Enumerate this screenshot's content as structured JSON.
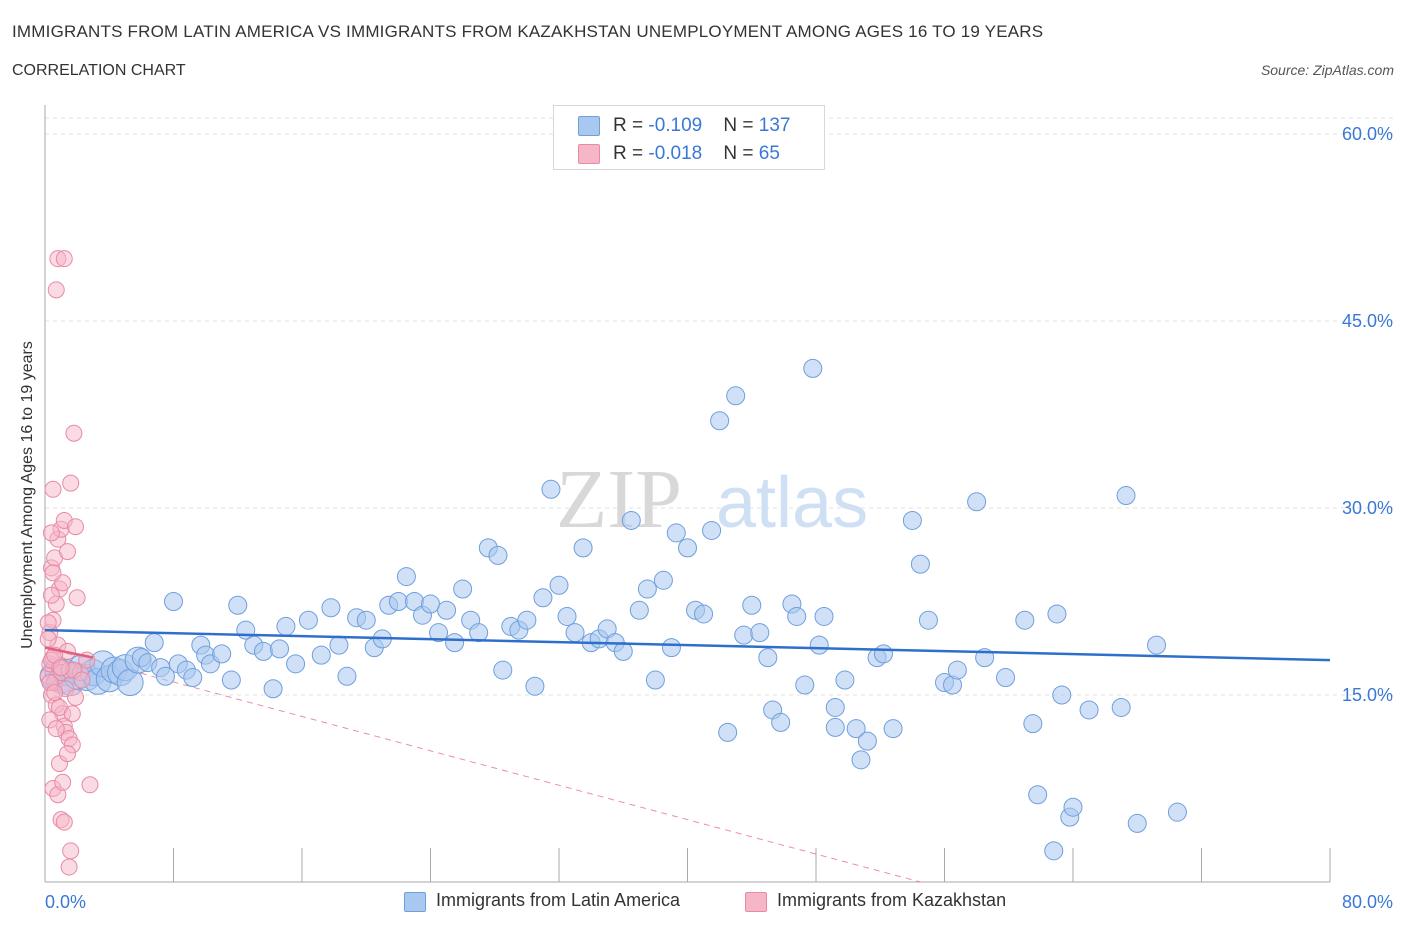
{
  "header": {
    "title": "IMMIGRANTS FROM LATIN AMERICA VS IMMIGRANTS FROM KAZAKHSTAN UNEMPLOYMENT AMONG AGES 16 TO 19 YEARS",
    "subtitle": "CORRELATION CHART",
    "source": "Source: ZipAtlas.com"
  },
  "legend": {
    "rows": [
      {
        "r_label": "R = ",
        "r_value": "-0.109",
        "n_label": "N = ",
        "n_value": "137",
        "color": "#a9c8f0"
      },
      {
        "r_label": "R = ",
        "r_value": "-0.018",
        "n_label": "N = ",
        "n_value": "65",
        "color": "#f5b6c8"
      }
    ]
  },
  "bottom_legend": {
    "items": [
      {
        "label": "Immigrants from Latin America",
        "color": "#a9c8f0"
      },
      {
        "label": "Immigrants from Kazakhstan",
        "color": "#f5b6c8"
      }
    ]
  },
  "watermark": {
    "zip": "ZIP",
    "atlas": "atlas"
  },
  "colors": {
    "blue_fill": "#a9c8f0",
    "blue_stroke": "#6f9fdc",
    "blue_line": "#2f6fcc",
    "pink_fill": "#f5b6c8",
    "pink_stroke": "#e88aa6",
    "pink_line": "#e0607f",
    "axis_text": "#3a78d6",
    "grid": "#e2e2e2"
  },
  "chart_data": {
    "type": "scatter",
    "title": "IMMIGRANTS FROM LATIN AMERICA VS IMMIGRANTS FROM KAZAKHSTAN UNEMPLOYMENT AMONG AGES 16 TO 19 YEARS",
    "xlabel": "",
    "ylabel": "Unemployment Among Ages 16 to 19 years",
    "xlim": [
      0,
      80
    ],
    "ylim": [
      0,
      60
    ],
    "x_tick_labels": [
      "0.0%",
      "80.0%"
    ],
    "y_ticks": [
      15,
      30,
      45,
      60
    ],
    "y_tick_labels": [
      "15.0%",
      "30.0%",
      "45.0%",
      "60.0%"
    ],
    "grid": true,
    "legend_position": "top-center",
    "series": [
      {
        "name": "Immigrants from Latin America",
        "r": -0.109,
        "n": 137,
        "trend": {
          "x": [
            0,
            80
          ],
          "y": [
            20.2,
            17.8
          ]
        },
        "points": [
          [
            0.5,
            16.5
          ],
          [
            0.8,
            17.0
          ],
          [
            1.0,
            16.2
          ],
          [
            1.3,
            16.8
          ],
          [
            1.6,
            16.0
          ],
          [
            2.0,
            16.5
          ],
          [
            2.3,
            17.2
          ],
          [
            2.6,
            16.4
          ],
          [
            3.0,
            16.8
          ],
          [
            3.3,
            16.1
          ],
          [
            3.6,
            17.5
          ],
          [
            4.0,
            16.3
          ],
          [
            4.3,
            17.0
          ],
          [
            4.7,
            16.8
          ],
          [
            5.0,
            17.2
          ],
          [
            5.3,
            16.0
          ],
          [
            5.8,
            17.8
          ],
          [
            6.0,
            18.0
          ],
          [
            6.4,
            17.6
          ],
          [
            6.8,
            19.2
          ],
          [
            7.2,
            17.2
          ],
          [
            7.5,
            16.5
          ],
          [
            8.0,
            22.5
          ],
          [
            8.3,
            17.5
          ],
          [
            8.8,
            17.0
          ],
          [
            9.2,
            16.4
          ],
          [
            9.7,
            19.0
          ],
          [
            10.0,
            18.2
          ],
          [
            10.3,
            17.5
          ],
          [
            11.0,
            18.3
          ],
          [
            11.6,
            16.2
          ],
          [
            12.0,
            22.2
          ],
          [
            12.5,
            20.2
          ],
          [
            13.0,
            19.0
          ],
          [
            13.6,
            18.5
          ],
          [
            14.2,
            15.5
          ],
          [
            14.6,
            18.7
          ],
          [
            15.0,
            20.5
          ],
          [
            15.6,
            17.5
          ],
          [
            16.4,
            21.0
          ],
          [
            17.2,
            18.2
          ],
          [
            17.8,
            22.0
          ],
          [
            18.3,
            19.0
          ],
          [
            18.8,
            16.5
          ],
          [
            19.4,
            21.2
          ],
          [
            20.0,
            21.0
          ],
          [
            20.5,
            18.8
          ],
          [
            21.0,
            19.5
          ],
          [
            21.4,
            22.2
          ],
          [
            22.0,
            22.5
          ],
          [
            22.5,
            24.5
          ],
          [
            23.0,
            22.5
          ],
          [
            23.5,
            21.4
          ],
          [
            24.0,
            22.3
          ],
          [
            24.5,
            20.0
          ],
          [
            25.0,
            21.8
          ],
          [
            25.5,
            19.2
          ],
          [
            26.0,
            23.5
          ],
          [
            26.5,
            21.0
          ],
          [
            27.0,
            20.0
          ],
          [
            27.6,
            26.8
          ],
          [
            28.2,
            26.2
          ],
          [
            28.5,
            17.0
          ],
          [
            29.0,
            20.5
          ],
          [
            29.5,
            20.2
          ],
          [
            30.0,
            21.0
          ],
          [
            30.5,
            15.7
          ],
          [
            31.0,
            22.8
          ],
          [
            31.5,
            31.5
          ],
          [
            32.0,
            23.8
          ],
          [
            32.5,
            21.3
          ],
          [
            33.0,
            20.0
          ],
          [
            33.5,
            26.8
          ],
          [
            34.0,
            19.2
          ],
          [
            34.5,
            19.5
          ],
          [
            35.0,
            20.3
          ],
          [
            35.5,
            19.2
          ],
          [
            36.0,
            18.5
          ],
          [
            36.5,
            29.0
          ],
          [
            37.0,
            21.8
          ],
          [
            37.5,
            23.5
          ],
          [
            38.0,
            16.2
          ],
          [
            38.5,
            24.2
          ],
          [
            39.0,
            18.8
          ],
          [
            39.3,
            28.0
          ],
          [
            40.0,
            26.8
          ],
          [
            40.5,
            21.8
          ],
          [
            41.0,
            21.5
          ],
          [
            41.5,
            28.2
          ],
          [
            42.0,
            37.0
          ],
          [
            42.5,
            12.0
          ],
          [
            43.0,
            39.0
          ],
          [
            43.5,
            19.8
          ],
          [
            44.0,
            22.2
          ],
          [
            44.5,
            20.0
          ],
          [
            45.0,
            18.0
          ],
          [
            45.3,
            13.8
          ],
          [
            45.8,
            12.8
          ],
          [
            46.5,
            22.3
          ],
          [
            46.8,
            21.3
          ],
          [
            47.3,
            15.8
          ],
          [
            47.8,
            41.2
          ],
          [
            48.2,
            19.0
          ],
          [
            48.5,
            21.3
          ],
          [
            49.2,
            14.0
          ],
          [
            49.2,
            12.4
          ],
          [
            49.8,
            16.2
          ],
          [
            50.5,
            12.3
          ],
          [
            50.8,
            9.8
          ],
          [
            51.2,
            11.3
          ],
          [
            51.8,
            18.0
          ],
          [
            52.2,
            18.3
          ],
          [
            52.8,
            12.3
          ],
          [
            54.0,
            29.0
          ],
          [
            54.5,
            25.5
          ],
          [
            55.0,
            21.0
          ],
          [
            56.0,
            16.0
          ],
          [
            56.5,
            15.8
          ],
          [
            56.8,
            17.0
          ],
          [
            58.0,
            30.5
          ],
          [
            58.5,
            18.0
          ],
          [
            59.8,
            16.4
          ],
          [
            61.0,
            21.0
          ],
          [
            61.5,
            12.7
          ],
          [
            61.8,
            7.0
          ],
          [
            62.8,
            2.5
          ],
          [
            63.0,
            21.5
          ],
          [
            63.3,
            15.0
          ],
          [
            63.8,
            5.2
          ],
          [
            64.0,
            6.0
          ],
          [
            65.0,
            13.8
          ],
          [
            67.0,
            14.0
          ],
          [
            67.3,
            31.0
          ],
          [
            68.0,
            4.7
          ],
          [
            69.2,
            19.0
          ],
          [
            70.5,
            5.6
          ]
        ]
      },
      {
        "name": "Immigrants from Kazakhstan",
        "r": -0.018,
        "n": 65,
        "trend": {
          "x": [
            0,
            3
          ],
          "y": [
            18.8,
            18.0
          ]
        },
        "trend_extended": {
          "x": [
            0,
            54.5
          ],
          "y": [
            18.8,
            0
          ]
        },
        "points": [
          [
            0.2,
            16.5
          ],
          [
            0.3,
            17.5
          ],
          [
            0.4,
            15.0
          ],
          [
            0.5,
            18.0
          ],
          [
            0.6,
            16.0
          ],
          [
            0.7,
            14.2
          ],
          [
            0.8,
            19.0
          ],
          [
            0.9,
            17.2
          ],
          [
            1.0,
            16.8
          ],
          [
            1.1,
            13.5
          ],
          [
            1.2,
            12.5
          ],
          [
            1.3,
            15.5
          ],
          [
            1.4,
            18.5
          ],
          [
            1.5,
            17.0
          ],
          [
            0.3,
            20.0
          ],
          [
            0.5,
            21.0
          ],
          [
            0.7,
            22.3
          ],
          [
            0.9,
            23.5
          ],
          [
            1.1,
            24.0
          ],
          [
            0.4,
            25.2
          ],
          [
            0.6,
            26.0
          ],
          [
            0.8,
            27.5
          ],
          [
            1.0,
            28.3
          ],
          [
            1.2,
            29.0
          ],
          [
            0.5,
            31.5
          ],
          [
            1.6,
            32.0
          ],
          [
            1.8,
            36.0
          ],
          [
            0.7,
            47.5
          ],
          [
            0.8,
            50.0
          ],
          [
            1.2,
            50.0
          ],
          [
            1.9,
            28.5
          ],
          [
            0.3,
            16.0
          ],
          [
            0.4,
            17.8
          ],
          [
            0.6,
            15.2
          ],
          [
            0.9,
            14.0
          ],
          [
            1.3,
            12.0
          ],
          [
            1.5,
            11.5
          ],
          [
            1.7,
            11.0
          ],
          [
            0.5,
            7.5
          ],
          [
            0.8,
            7.0
          ],
          [
            1.0,
            5.0
          ],
          [
            1.2,
            4.8
          ],
          [
            1.6,
            2.5
          ],
          [
            1.5,
            1.2
          ],
          [
            2.0,
            22.8
          ],
          [
            2.2,
            16.8
          ],
          [
            0.2,
            19.5
          ],
          [
            0.4,
            23.0
          ],
          [
            1.4,
            26.5
          ],
          [
            0.6,
            18.2
          ],
          [
            1.8,
            17.0
          ],
          [
            2.3,
            16.2
          ],
          [
            2.6,
            17.8
          ],
          [
            0.3,
            13.0
          ],
          [
            0.7,
            12.3
          ],
          [
            1.1,
            8.0
          ],
          [
            0.9,
            9.5
          ],
          [
            1.4,
            10.3
          ],
          [
            0.2,
            20.8
          ],
          [
            0.5,
            24.8
          ],
          [
            1.7,
            13.5
          ],
          [
            2.8,
            7.8
          ],
          [
            0.4,
            28.0
          ],
          [
            1.9,
            14.8
          ],
          [
            1.0,
            17.2
          ]
        ]
      }
    ]
  }
}
